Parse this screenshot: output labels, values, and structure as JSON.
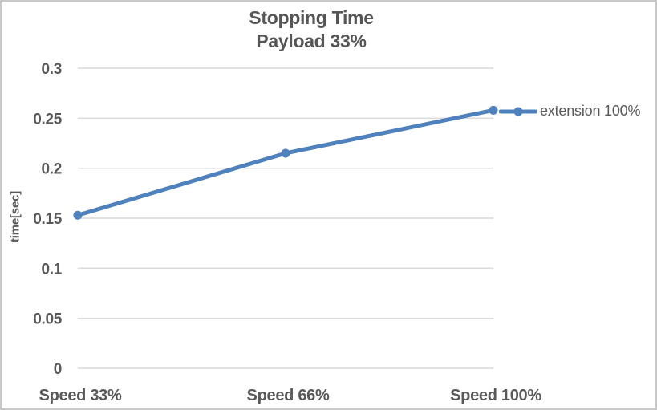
{
  "chart_data": {
    "type": "line",
    "title": "Stopping Time",
    "subtitle": "Payload 33%",
    "ylabel": "time[sec]",
    "xlabel": "",
    "categories": [
      "Speed 33%",
      "Speed 66%",
      "Speed 100%"
    ],
    "series": [
      {
        "name": "extension 100%",
        "values": [
          0.153,
          0.215,
          0.258
        ]
      }
    ],
    "ylim": [
      0,
      0.3
    ],
    "yticks": [
      0,
      0.05,
      0.1,
      0.15,
      0.2,
      0.25,
      0.3
    ],
    "ytick_labels": [
      "0",
      "0.05",
      "0.1",
      "0.15",
      "0.2",
      "0.25",
      "0.3"
    ],
    "grid": true,
    "legend_position": "right-of-last-point",
    "colors": {
      "series": "#4F81BD",
      "grid": "#D9D9D9",
      "text": "#595959",
      "title": "#565656",
      "border": "#C9C9C9",
      "background": "#FFFFFF"
    }
  }
}
